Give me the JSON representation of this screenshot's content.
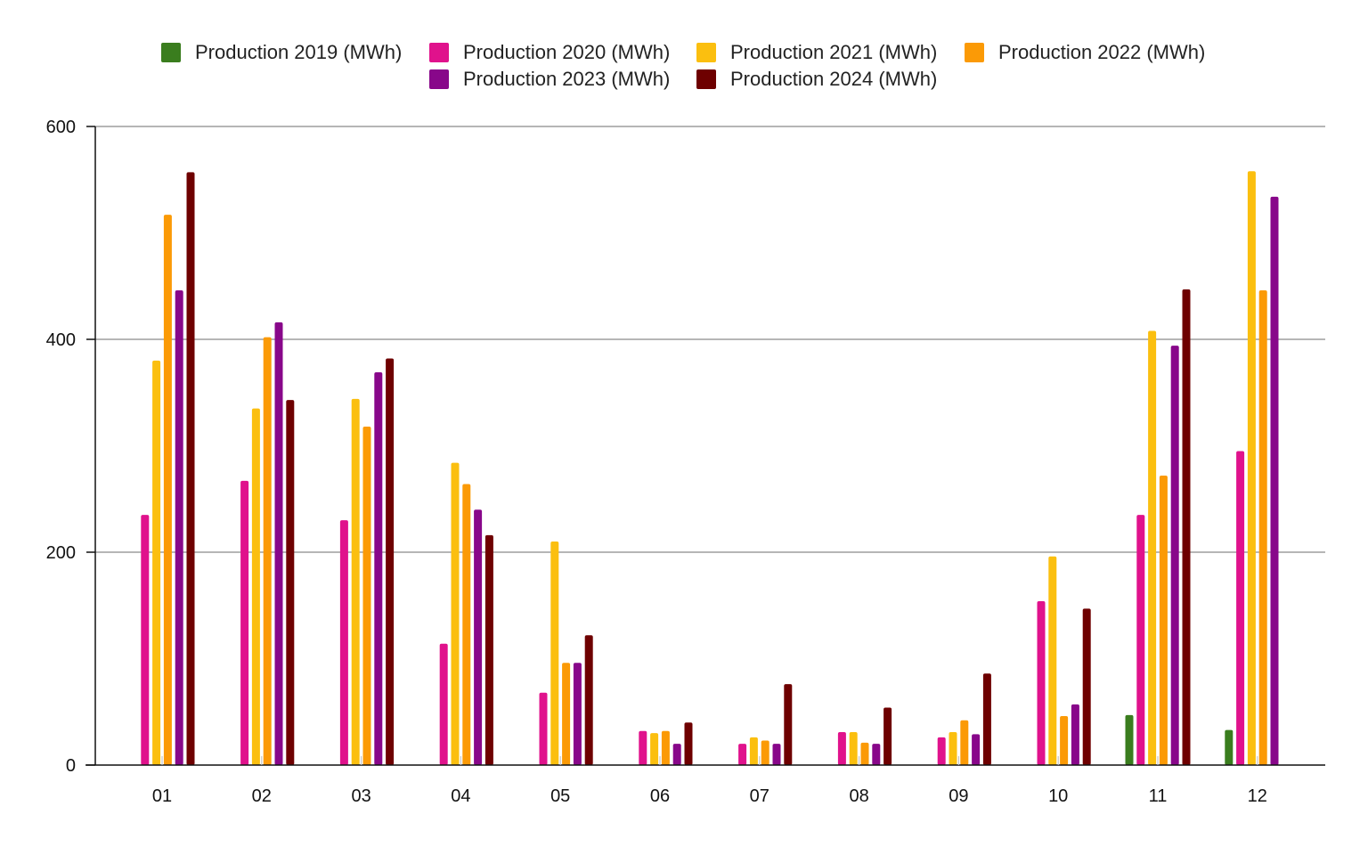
{
  "chart_data": {
    "type": "bar",
    "title": "",
    "xlabel": "",
    "ylabel": "",
    "ylim": [
      0,
      600
    ],
    "yticks": [
      "0",
      "200",
      "400",
      "600"
    ],
    "grid": true,
    "legend_position": "top",
    "categories": [
      "01",
      "02",
      "03",
      "04",
      "05",
      "06",
      "07",
      "08",
      "09",
      "10",
      "11",
      "12"
    ],
    "series": [
      {
        "name": "Production 2019 (MWh)",
        "color": "#3a7d1e",
        "values": [
          null,
          null,
          null,
          null,
          null,
          null,
          null,
          null,
          null,
          null,
          47,
          33
        ]
      },
      {
        "name": "Production 2020 (MWh)",
        "color": "#e0128c",
        "values": [
          235,
          267,
          230,
          114,
          68,
          32,
          20,
          31,
          26,
          154,
          235,
          295
        ]
      },
      {
        "name": "Production 2021 (MWh)",
        "color": "#fbbf0f",
        "values": [
          380,
          335,
          344,
          284,
          210,
          30,
          26,
          31,
          31,
          196,
          408,
          558
        ]
      },
      {
        "name": "Production 2022 (MWh)",
        "color": "#fb9a06",
        "values": [
          517,
          402,
          318,
          264,
          96,
          32,
          23,
          21,
          42,
          46,
          272,
          446
        ]
      },
      {
        "name": "Production 2023 (MWh)",
        "color": "#88078a",
        "values": [
          446,
          416,
          369,
          240,
          96,
          20,
          20,
          20,
          29,
          57,
          394,
          534
        ]
      },
      {
        "name": "Production 2024 (MWh)",
        "color": "#6e0000",
        "values": [
          557,
          343,
          382,
          216,
          122,
          40,
          76,
          54,
          86,
          147,
          447,
          null
        ]
      }
    ]
  }
}
